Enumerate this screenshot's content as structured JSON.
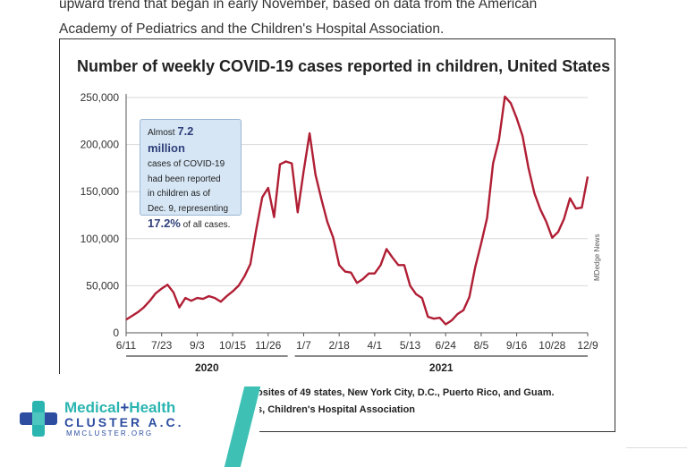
{
  "article": {
    "intro_line1": "upward trend that began in early November, based on data from the American",
    "intro_line2": "Academy of Pediatrics and the Children's Hospital Association."
  },
  "chart_data": {
    "type": "line",
    "title": "Number of weekly COVID-19 cases reported in children, United States",
    "xlabel": "",
    "ylabel": "",
    "ylim": [
      0,
      250000
    ],
    "yticks": [
      "250,000",
      "200,000",
      "150,000",
      "100,000",
      "50,000",
      "0"
    ],
    "xticks": [
      "6/11",
      "7/23",
      "9/3",
      "10/15",
      "11/26",
      "1/7",
      "2/18",
      "4/1",
      "5/13",
      "6/24",
      "8/5",
      "9/16",
      "10/28",
      "12/9"
    ],
    "year_labels": [
      "2020",
      "2021"
    ],
    "grid": true,
    "line_color": "#b01e34",
    "series": [
      {
        "values": [
          14000,
          18000,
          22000,
          27000,
          34000,
          42000,
          47000,
          51000,
          43000,
          27000,
          37000,
          34000,
          37000,
          36000,
          39000,
          37000,
          33000,
          39000,
          44000,
          50000,
          60000,
          73000,
          110000,
          144000,
          154000,
          123000,
          179000,
          182000,
          180000,
          128000,
          172000,
          212000,
          168000,
          142000,
          118000,
          101000,
          72000,
          65000,
          64000,
          53000,
          57000,
          63000,
          63000,
          72000,
          89000,
          80000,
          72000,
          72000,
          50000,
          41000,
          37000,
          17000,
          15000,
          16000,
          9000,
          13000,
          20000,
          24000,
          38000,
          70000,
          95000,
          122000,
          180000,
          205000,
          251000,
          244000,
          228000,
          209000,
          175000,
          148000,
          131000,
          118000,
          101000,
          107000,
          121000,
          143000,
          132000,
          133000,
          166000
        ]
      }
    ]
  },
  "annotation": {
    "line1_prefix": "Almost",
    "line1_value": "7.2 million",
    "line2": "cases of COVID-19",
    "line3": "had been reported",
    "line4": "in children as of",
    "line5": "Dec. 9, representing",
    "line6_value": "17.2%",
    "line6_suffix": "of all cases."
  },
  "credit": "MDedge News",
  "source": {
    "line1": "osites of 49 states, New York City, D.C., Puerto Rico, and Guam.",
    "line2": "s, Children's Hospital Association"
  },
  "logo": {
    "brand_part1": "Medical",
    "brand_plus": "+",
    "brand_part2": "Health",
    "line2": "CLUSTER A.C.",
    "line3": "MMCLUSTER.ORG",
    "colors": {
      "teal": "#2bb5b0",
      "navy": "#2c4da0"
    }
  }
}
